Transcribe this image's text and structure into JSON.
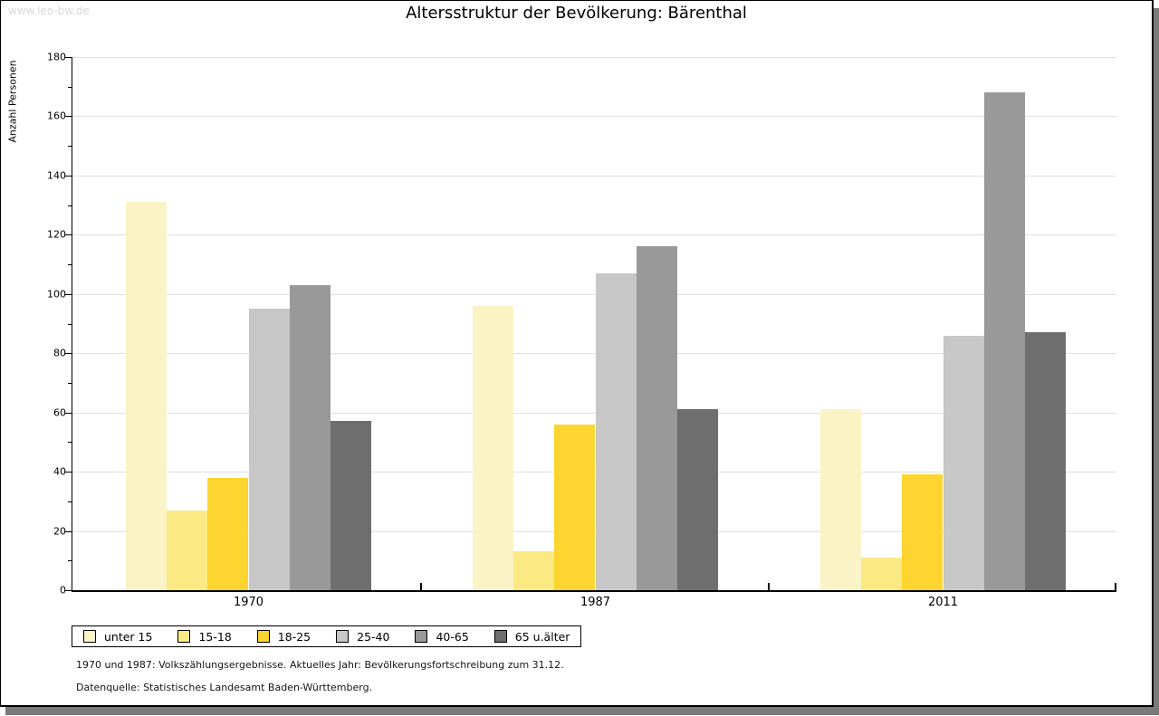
{
  "watermark": "www.leo-bw.de",
  "title": "Altersstruktur der Bevölkerung: Bärenthal",
  "chart_data": {
    "type": "bar",
    "title": "Altersstruktur der Bevölkerung: Bärenthal",
    "xlabel": "",
    "ylabel": "Anzahl Personen",
    "ylim": [
      0,
      180
    ],
    "ytick_step": 20,
    "yminor_step": 10,
    "grid": true,
    "categories": [
      "1970",
      "1987",
      "2011"
    ],
    "series": [
      {
        "name": "unter 15",
        "color": "#faf3c6",
        "values": [
          131,
          96,
          61
        ]
      },
      {
        "name": "15-18",
        "color": "#fbe983",
        "values": [
          27,
          13,
          11
        ]
      },
      {
        "name": "18-25",
        "color": "#fcd530",
        "values": [
          38,
          56,
          39
        ]
      },
      {
        "name": "25-40",
        "color": "#c7c7c7",
        "values": [
          95,
          107,
          86
        ]
      },
      {
        "name": "40-65",
        "color": "#999999",
        "values": [
          103,
          116,
          168
        ]
      },
      {
        "name": "65 u.älter",
        "color": "#6e6e6e",
        "values": [
          57,
          61,
          87
        ]
      }
    ],
    "legend_position": "bottom-left",
    "gridline_color": "#e0e0e0",
    "shadow_color": "#7a7a7a"
  },
  "footnotes": [
    "1970 und 1987: Volkszählungsergebnisse. Aktuelles Jahr: Bevölkerungsfortschreibung zum 31.12.",
    "Datenquelle: Statistisches Landesamt Baden-Württemberg."
  ]
}
